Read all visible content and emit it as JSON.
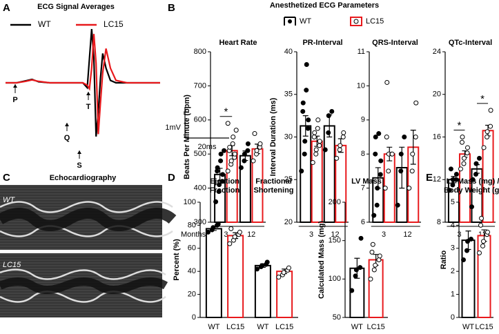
{
  "panel_b": {
    "letter": "B",
    "title": "Anesthetized ECG Parameters",
    "legend": [
      "WT",
      "LC15"
    ],
    "x_prefix": "Months:"
  },
  "panel_d": {
    "letter": "D"
  },
  "echo": {
    "letter": "C",
    "title": "Echocardiography",
    "labels": [
      "WT",
      "LC15"
    ]
  },
  "chart_data": [
    {
      "type": "line",
      "panel": "A",
      "title": "ECG Signal Averages",
      "x": [
        0,
        10,
        18,
        24,
        30,
        40,
        55,
        70,
        74,
        76,
        78,
        80,
        82,
        84,
        86,
        88,
        91,
        95,
        100,
        110,
        140
      ],
      "series": [
        {
          "name": "WT",
          "color": "#000000",
          "values": [
            0,
            0,
            0.04,
            0.07,
            0.02,
            0,
            0,
            0,
            -0.1,
            0.5,
            1.1,
            0.5,
            -1.1,
            -0.6,
            0.1,
            0.6,
            0.3,
            0.05,
            0,
            0,
            0
          ]
        },
        {
          "name": "LC15",
          "color": "#e8191c",
          "values": [
            0,
            0,
            0.03,
            0.06,
            0.03,
            0,
            0,
            0,
            -0.05,
            -0.12,
            0.3,
            1.0,
            0.4,
            -1.05,
            -0.4,
            0.2,
            0.7,
            0.3,
            0.05,
            0,
            0
          ]
        }
      ],
      "xlim": [
        0,
        140
      ],
      "ylim": [
        -1.2,
        1.2
      ],
      "annotations": [
        "P",
        "Q",
        "T",
        "S"
      ],
      "scale_labels": [
        "1mV",
        "20ms"
      ]
    },
    {
      "type": "bar",
      "title": "Heart Rate",
      "ylabel": "Beats Per Minute (bpm)",
      "groups": [
        "3",
        "12"
      ],
      "colors": [
        "#000000",
        "#e8191c",
        "#000000",
        "#e8191c"
      ],
      "values": [
        440,
        510,
        495,
        515
      ],
      "errors": [
        18,
        15,
        14,
        14
      ],
      "points": [
        [
          360,
          390,
          410,
          420,
          440,
          450,
          460,
          480,
          500,
          510
        ],
        [
          450,
          470,
          480,
          490,
          500,
          510,
          520,
          530,
          550,
          570,
          590
        ],
        [
          460,
          480,
          500,
          510,
          530
        ],
        [
          480,
          500,
          510,
          520,
          530,
          560
        ]
      ],
      "brackets": [
        {
          "label": "*",
          "pair": [
            0,
            1
          ]
        }
      ],
      "ylim": [
        300,
        800
      ],
      "yticks": [
        300,
        400,
        500,
        600,
        700,
        800
      ]
    },
    {
      "type": "bar",
      "title": "PR-Interval",
      "ylabel": "Interval Duration (ms)",
      "groups": [
        "3",
        "12"
      ],
      "colors": [
        "#000000",
        "#e8191c",
        "#000000",
        "#e8191c"
      ],
      "values": [
        31.3,
        29.5,
        31.3,
        29.0
      ],
      "errors": [
        1.2,
        0.6,
        1.3,
        0.8
      ],
      "points": [
        [
          26,
          28,
          29.5,
          31,
          32,
          33,
          34,
          35.5,
          38.5
        ],
        [
          27,
          28,
          28.5,
          29,
          29.5,
          30,
          30.5,
          31,
          32
        ],
        [
          28.5,
          30.5,
          32.5,
          33
        ],
        [
          27.5,
          28.5,
          29,
          30,
          30.5
        ]
      ],
      "ylim": [
        20,
        40
      ],
      "yticks": [
        20,
        25,
        30,
        35,
        40
      ]
    },
    {
      "type": "bar",
      "title": "QRS-Interval",
      "ylabel": "",
      "groups": [
        "3",
        "12"
      ],
      "colors": [
        "#000000",
        "#e8191c",
        "#000000",
        "#e8191c"
      ],
      "values": [
        7.3,
        8.0,
        7.6,
        8.2
      ],
      "errors": [
        0.3,
        0.2,
        0.6,
        0.5
      ],
      "points": [
        [
          6.2,
          6.5,
          7,
          7.4,
          7.8,
          8,
          8.5,
          8.6
        ],
        [
          7,
          7.5,
          8,
          8,
          8,
          8.5,
          10.1
        ],
        [
          6.5,
          7.5,
          8,
          8.5
        ],
        [
          7,
          7.5,
          8,
          8.5,
          9.5
        ]
      ],
      "ylim": [
        6,
        11
      ],
      "yticks": [
        6,
        7,
        8,
        9,
        10,
        11
      ]
    },
    {
      "type": "bar",
      "title": "QTc-Interval",
      "ylabel": "",
      "groups": [
        "3",
        "12"
      ],
      "colors": [
        "#000000",
        "#e8191c",
        "#000000",
        "#e8191c"
      ],
      "values": [
        12.0,
        14.4,
        13.0,
        16.6
      ],
      "errors": [
        0.3,
        0.3,
        0.4,
        0.5
      ],
      "points": [
        [
          11,
          11.5,
          12,
          12,
          12.5,
          13
        ],
        [
          13,
          13.5,
          14,
          14.5,
          15,
          15.5,
          16
        ],
        [
          12,
          12.5,
          13.5,
          14
        ],
        [
          15,
          16,
          16.5,
          17,
          18.5
        ]
      ],
      "brackets": [
        {
          "label": "*",
          "pair": [
            0,
            1
          ]
        },
        {
          "label": "*",
          "pair": [
            2,
            3
          ]
        }
      ],
      "ylim": [
        8,
        24
      ],
      "yticks": [
        8,
        12,
        16,
        20,
        24
      ]
    },
    {
      "type": "bar",
      "title": [
        [
          "Ejection",
          "Fraction"
        ],
        [
          "Fractional",
          "Shortening"
        ]
      ],
      "ylabel": "Percent (%)",
      "categories": [
        "WT",
        "LC15",
        "WT",
        "LC15"
      ],
      "colors": [
        "#000000",
        "#e8191c",
        "#000000",
        "#e8191c"
      ],
      "values": [
        77,
        71,
        45,
        40
      ],
      "errors": [
        1.5,
        2.5,
        1.5,
        2
      ],
      "points": [
        [
          74,
          76,
          78,
          80,
          81
        ],
        [
          64,
          67,
          70,
          72,
          74,
          77
        ],
        [
          42,
          44,
          45,
          46,
          48
        ],
        [
          35,
          37,
          39,
          41,
          43
        ]
      ],
      "ylim": [
        0,
        100
      ],
      "yticks": [
        0,
        20,
        40,
        60,
        80,
        100
      ]
    },
    {
      "type": "bar",
      "title": "LV Mass",
      "ylabel": "Calculated Mass (mg)",
      "categories": [
        "WT",
        "LC15"
      ],
      "colors": [
        "#000000",
        "#e8191c"
      ],
      "values": [
        114,
        125
      ],
      "errors": [
        13,
        7
      ],
      "points": [
        [
          85,
          104,
          112,
          115,
          153
        ],
        [
          100,
          112,
          118,
          125,
          130,
          135,
          145
        ]
      ],
      "ylim": [
        50,
        200
      ],
      "yticks": [
        50,
        100,
        150,
        200
      ]
    },
    {
      "type": "bar",
      "panel": "E",
      "title": [
        "LV Mass (mg) /",
        "Body Weight (g)"
      ],
      "ylabel": "Ratio",
      "categories": [
        "WT",
        "LC15"
      ],
      "colors": [
        "#000000",
        "#e8191c"
      ],
      "values": [
        3.35,
        3.55
      ],
      "errors": [
        0.4,
        0.25
      ],
      "points": [
        [
          2.5,
          2.9,
          3.3,
          3.4,
          4.8
        ],
        [
          2.8,
          3.1,
          3.3,
          3.6,
          3.7,
          4.0,
          4.3
        ]
      ],
      "ylim": [
        0,
        5
      ],
      "yticks": [
        0,
        1,
        2,
        3,
        4,
        5
      ]
    }
  ]
}
